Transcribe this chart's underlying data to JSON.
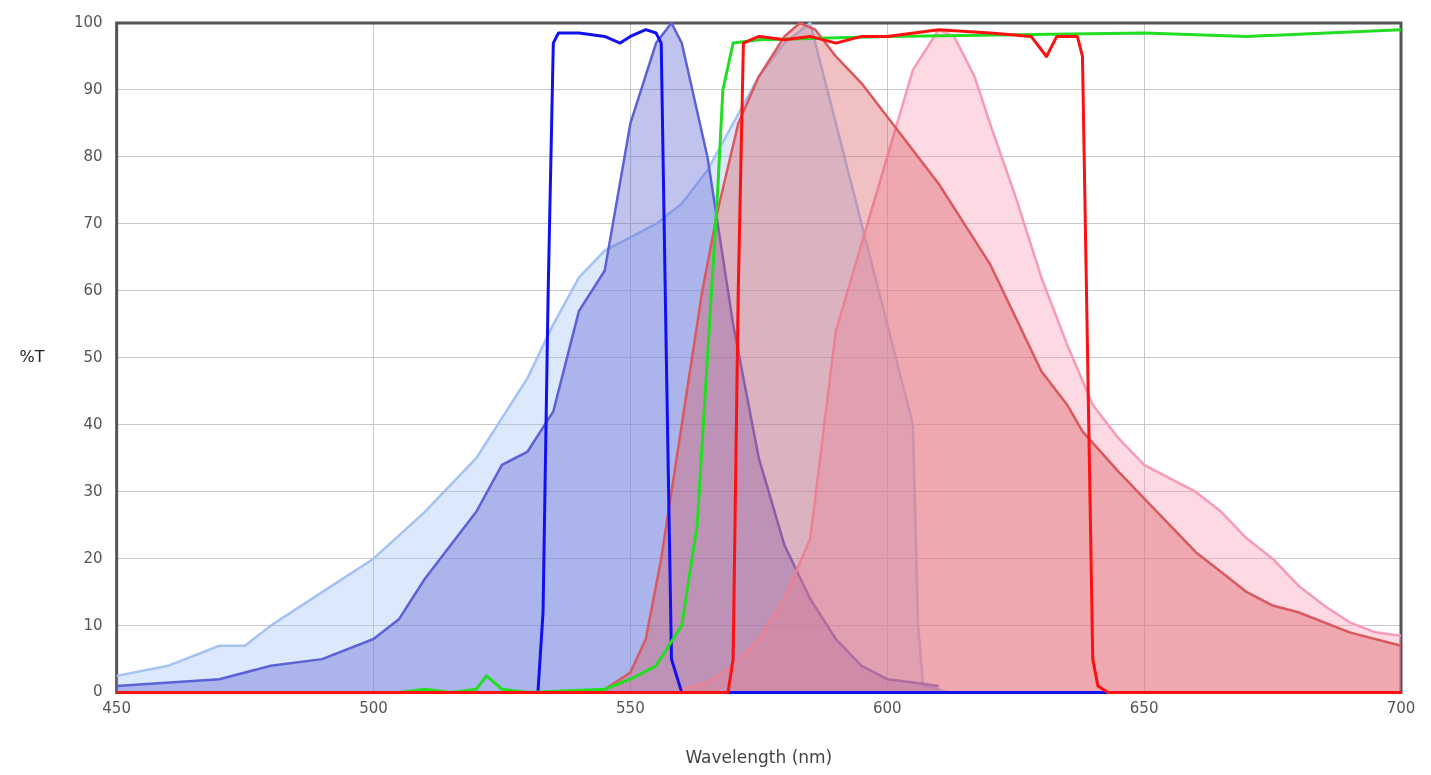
{
  "chart_data": {
    "type": "line",
    "xlabel": "Wavelength (nm)",
    "ylabel": "%T",
    "xlim": [
      450,
      700
    ],
    "xticks": [
      450,
      500,
      550,
      600,
      650,
      700
    ],
    "ylim": [
      0,
      100
    ],
    "yticks": [
      0,
      10,
      20,
      30,
      40,
      50,
      60,
      70,
      80,
      90,
      100
    ],
    "grid": true,
    "marker": "none",
    "line_style": "solid",
    "series": [
      {
        "type": "area",
        "color": "#a4c2f4",
        "x": [
          450,
          460,
          470,
          475,
          480,
          490,
          500,
          510,
          520,
          530,
          535,
          540,
          545,
          550,
          555,
          560,
          565,
          570,
          575,
          580,
          585,
          590,
          595,
          600,
          605,
          606,
          607,
          610,
          612
        ],
        "values": [
          2.5,
          4,
          7,
          7,
          10,
          15,
          20,
          27,
          35,
          47,
          55,
          62,
          66,
          68,
          70,
          73,
          78,
          85,
          92,
          97,
          100,
          85,
          70,
          55,
          40,
          10,
          1,
          0.5,
          0
        ]
      },
      {
        "type": "area",
        "color": "#5b62d6",
        "x": [
          450,
          470,
          480,
          490,
          500,
          505,
          510,
          515,
          520,
          525,
          530,
          535,
          540,
          545,
          550,
          555,
          558,
          560,
          565,
          570,
          575,
          580,
          585,
          590,
          595,
          600,
          605,
          610
        ],
        "values": [
          1,
          2,
          4,
          5,
          8,
          11,
          17,
          22,
          27,
          34,
          36,
          42,
          57,
          63,
          85,
          97,
          100,
          97,
          80,
          55,
          35,
          22,
          14,
          8,
          4,
          2,
          1.5,
          1
        ]
      },
      {
        "type": "area",
        "color": "#f79ab5",
        "x": [
          560,
          565,
          570,
          575,
          580,
          585,
          590,
          595,
          600,
          605,
          610,
          613,
          617,
          620,
          625,
          630,
          635,
          640,
          645,
          650,
          655,
          660,
          665,
          670,
          675,
          680,
          685,
          690,
          695,
          700
        ],
        "values": [
          0.5,
          1.5,
          4,
          8,
          14,
          23,
          54,
          67,
          80,
          93,
          99,
          98,
          92,
          85,
          74,
          62,
          52,
          43,
          38,
          34,
          32,
          30,
          27,
          23,
          20,
          16,
          13,
          10.5,
          9,
          8.5
        ]
      },
      {
        "type": "area",
        "color": "#d9595e",
        "x": [
          540,
          545,
          550,
          553,
          556,
          558,
          561,
          564,
          567,
          571,
          575,
          580,
          583,
          586,
          590,
          595,
          600,
          605,
          610,
          615,
          620,
          625,
          630,
          635,
          638,
          645,
          650,
          655,
          660,
          665,
          670,
          675,
          680,
          690,
          700
        ],
        "values": [
          0,
          0.5,
          3,
          8,
          20,
          30,
          45,
          60,
          72,
          85,
          92,
          98,
          100,
          99,
          95,
          91,
          86,
          81,
          76,
          70,
          64,
          56,
          48,
          43,
          39,
          33,
          29,
          25,
          21,
          18,
          15,
          13,
          12,
          9,
          7
        ]
      },
      {
        "type": "line",
        "color": "#1010f0",
        "x": [
          450,
          532,
          533,
          534,
          535,
          536,
          540,
          545,
          548,
          550,
          553,
          555,
          556,
          557,
          558,
          560,
          700
        ],
        "values": [
          0,
          0,
          12,
          60,
          97,
          98.5,
          98.5,
          98,
          97,
          98,
          99,
          98.5,
          97,
          50,
          5,
          0,
          0
        ]
      },
      {
        "type": "line",
        "color": "#22dd22",
        "x": [
          450,
          505,
          510,
          515,
          520,
          522,
          525,
          530,
          545,
          550,
          555,
          560,
          563,
          565,
          567,
          568,
          570,
          575,
          600,
          650,
          670,
          700
        ],
        "values": [
          0,
          0,
          0.5,
          0,
          0.5,
          2.5,
          0.5,
          0,
          0.5,
          2,
          4,
          10,
          25,
          50,
          75,
          90,
          97,
          97.5,
          98,
          98.5,
          98,
          99
        ]
      },
      {
        "type": "line",
        "color": "#ff1010",
        "x": [
          450,
          569,
          570,
          571,
          572,
          575,
          580,
          585,
          590,
          595,
          600,
          610,
          620,
          628,
          631,
          633,
          637,
          638,
          639,
          640,
          641,
          643,
          700
        ],
        "values": [
          0,
          0,
          5,
          60,
          97,
          98,
          97.5,
          98,
          97,
          98,
          98,
          99,
          98.5,
          98,
          95,
          98,
          98,
          95,
          50,
          5,
          1,
          0,
          0
        ]
      }
    ]
  }
}
